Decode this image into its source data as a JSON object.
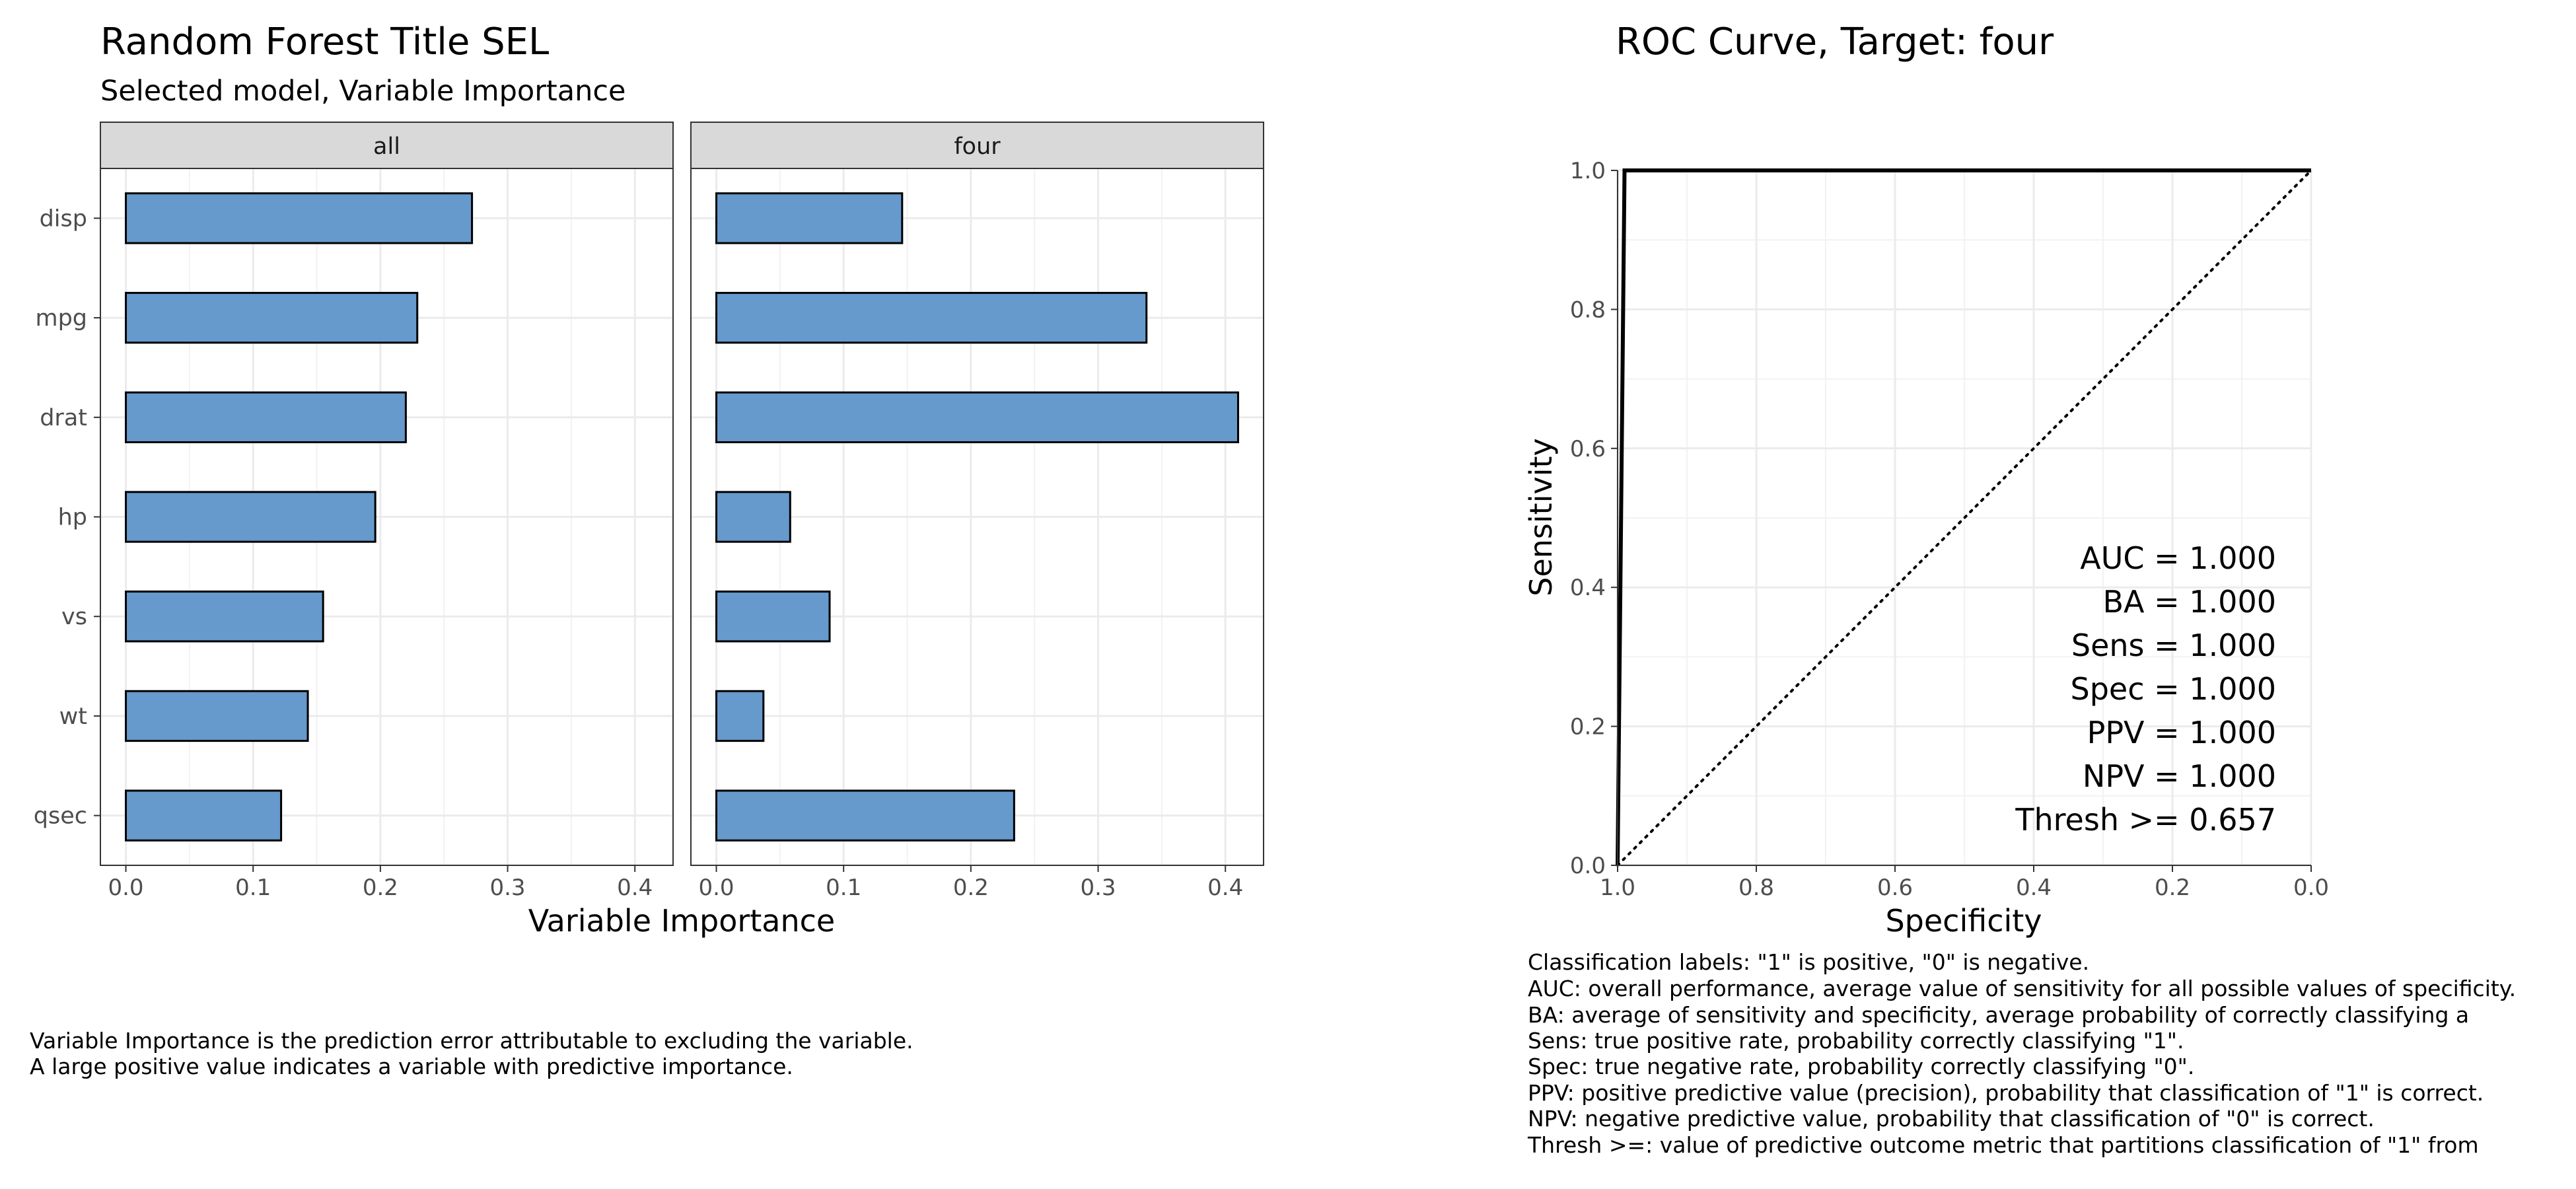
{
  "left": {
    "title": "Random Forest Title SEL",
    "subtitle": "Selected model, Variable Importance",
    "xlabel": "Variable Importance",
    "note": [
      "Variable Importance is the prediction error attributable to excluding the variable.",
      "A large positive value indicates a variable with predictive importance."
    ]
  },
  "right": {
    "title": "ROC Curve, Target:  four",
    "xlabel": "Specificity",
    "ylabel": "Sensitivity",
    "stats": [
      "AUC = 1.000",
      "BA = 1.000",
      "Sens = 1.000",
      "Spec = 1.000",
      "PPV = 1.000",
      "NPV = 1.000",
      "Thresh >= 0.657"
    ],
    "legend_lines": [
      "Classification labels:  \"1\" is positive, \"0\" is negative.",
      "AUC: overall performance, average value of sensitivity for all possible values of specificity.",
      "BA: average of sensitivity and specificity, average probability of correctly classifying a",
      "Sens: true positive rate, probability correctly classifying \"1\".",
      "Spec: true negative rate, probability correctly classifying \"0\".",
      "PPV: positive predictive value (precision), probability that classification of \"1\" is correct.",
      "NPV: negative predictive value, probability that classification of \"0\" is correct.",
      "Thresh >=: value of predictive outcome metric that partitions classification of \"1\" from"
    ]
  },
  "colors": {
    "bar_fill": "#6699CC",
    "strip_fill": "#D9D9D9",
    "grid": "#EBEBEB"
  },
  "chart_data": [
    {
      "type": "bar",
      "orientation": "horizontal",
      "categories": [
        "disp",
        "mpg",
        "drat",
        "hp",
        "vs",
        "wt",
        "qsec"
      ],
      "facets": [
        {
          "name": "all",
          "values": [
            0.272,
            0.229,
            0.22,
            0.196,
            0.155,
            0.143,
            0.122
          ]
        },
        {
          "name": "four",
          "values": [
            0.146,
            0.338,
            0.41,
            0.058,
            0.089,
            0.037,
            0.234
          ]
        }
      ],
      "xlabel": "Variable Importance",
      "xlim": [
        -0.02,
        0.43
      ],
      "xticks": [
        "0.0",
        "0.1",
        "0.2",
        "0.3",
        "0.4"
      ]
    },
    {
      "type": "line",
      "series": [
        {
          "name": "ROC",
          "x": [
            1.0,
            0.99,
            0.0
          ],
          "y": [
            0.0,
            1.0,
            1.0
          ]
        },
        {
          "name": "reference",
          "x": [
            1.0,
            0.0
          ],
          "y": [
            0.0,
            1.0
          ]
        }
      ],
      "xlabel": "Specificity",
      "ylabel": "Sensitivity",
      "xlim": [
        1.0,
        0.0
      ],
      "ylim": [
        0.0,
        1.0
      ],
      "xticks": [
        "1.0",
        "0.8",
        "0.6",
        "0.4",
        "0.2",
        "0.0"
      ],
      "yticks": [
        "0.0",
        "0.2",
        "0.4",
        "0.6",
        "0.8",
        "1.0"
      ]
    }
  ]
}
